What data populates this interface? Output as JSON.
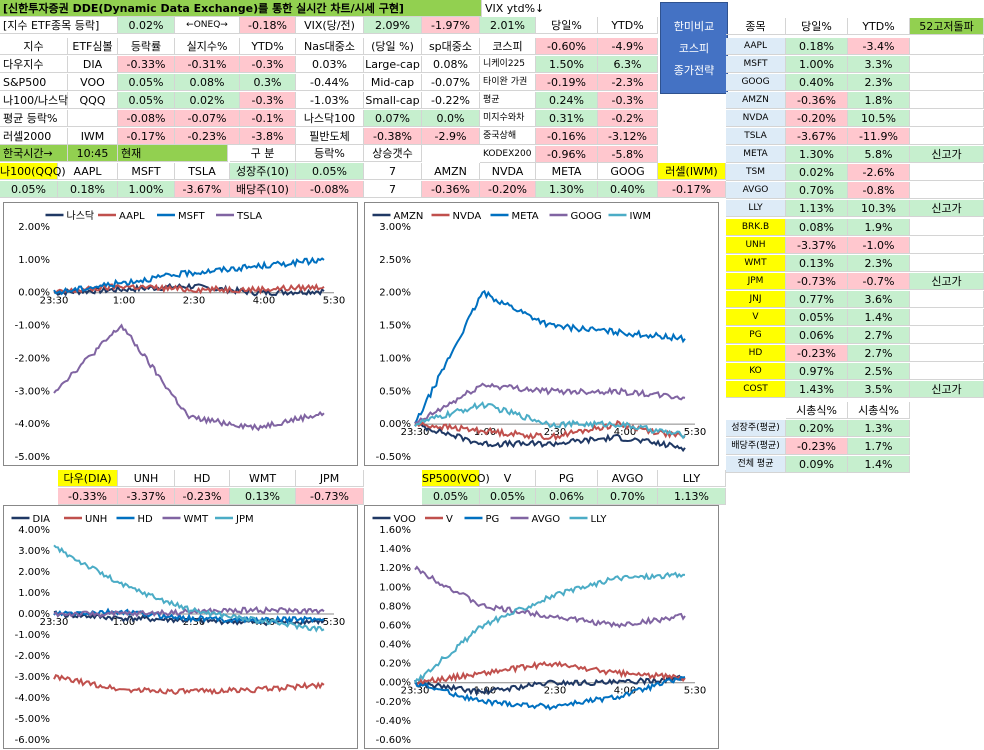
{
  "title": "[신한투자증권 DDE(Dynamic Data Exchange)를 통한 실시간 차트/시세 구현]",
  "vix_label": "VIX ytd%↓",
  "top_row": {
    "c1": "[지수 ETF종목 등락]",
    "c2": "0.02%",
    "c3": "←ONEQ→",
    "c4": "-0.18%",
    "c5": "VIX(당/전)",
    "c6": "2.09%",
    "c7": "-1.97%",
    "c8": "2.01%",
    "c9": "당일%",
    "c10": "YTD%"
  },
  "button": {
    "line1": "한미비교",
    "line2": "코스피",
    "line3": "종가전략"
  },
  "index_table": {
    "headers": [
      "지수",
      "ETF심볼",
      "등락률",
      "실지수%",
      "YTD%"
    ],
    "rows": [
      [
        "다우지수",
        "DIA",
        "-0.33%",
        "-0.31%",
        "-0.3%"
      ],
      [
        "S&P500",
        "VOO",
        "0.05%",
        "0.08%",
        "0.3%"
      ],
      [
        "나100/나스닥",
        "QQQ",
        "0.05%",
        "0.02%",
        "-0.3%"
      ],
      [
        "평균 등락%",
        "",
        "-0.08%",
        "-0.07%",
        "-0.1%"
      ],
      [
        "러셀2000",
        "IWM",
        "-0.17%",
        "-0.23%",
        "-3.8%"
      ]
    ]
  },
  "size_table": {
    "headers": [
      "Nas대중소",
      "(당일 %)",
      "sp대중소"
    ],
    "rows": [
      [
        "0.03%",
        "Large-cap",
        "0.08%"
      ],
      [
        "-0.44%",
        "Mid-cap",
        "-0.07%"
      ],
      [
        "-1.03%",
        "Small-cap",
        "-0.22%"
      ]
    ],
    "nas100_label": "나스닥100",
    "nas100_val1": "0.07%",
    "nas100_val2": "0.0%",
    "semi_label": "필반도체",
    "semi_val1": "-0.38%",
    "semi_val2": "-2.9%"
  },
  "asia_table": {
    "headers": [
      "코스피",
      "-0.60%",
      "-4.9%"
    ],
    "rows": [
      [
        "니케이225",
        "1.50%",
        "6.3%"
      ],
      [
        "타이완 가권",
        "-0.19%",
        "-2.3%"
      ],
      [
        "평균",
        "0.24%",
        "-0.3%"
      ],
      [
        "미지수와차",
        "0.31%",
        "-0.2%"
      ],
      [
        "중국상해",
        "-0.16%",
        "-3.12%"
      ],
      [
        "KODEX200",
        "-0.96%",
        "-5.8%"
      ]
    ]
  },
  "time_row": {
    "label": "한국시간→",
    "time": "10:45",
    "now": "현재"
  },
  "growth_table": {
    "headers": [
      "구  분",
      "등락%",
      "상승갯수"
    ],
    "rows": [
      [
        "성장주(10)",
        "0.05%",
        "7"
      ],
      [
        "배당주(10)",
        "-0.08%",
        "7"
      ]
    ]
  },
  "quote_row1": {
    "names": [
      "나100(QQQ)",
      "AAPL",
      "MSFT",
      "TSLA"
    ],
    "vals": [
      "0.05%",
      "0.18%",
      "1.00%",
      "-3.67%"
    ]
  },
  "quote_row2": {
    "names": [
      "AMZN",
      "NVDA",
      "META",
      "GOOG",
      "러셀(IWM)"
    ],
    "vals": [
      "-0.36%",
      "-0.20%",
      "1.30%",
      "0.40%",
      "-0.17%"
    ]
  },
  "stock_table": {
    "headers": [
      "종목",
      "당일%",
      "YTD%",
      "52고저돌파"
    ],
    "rows": [
      [
        "AAPL",
        "0.18%",
        "-3.4%",
        ""
      ],
      [
        "MSFT",
        "1.00%",
        "3.3%",
        ""
      ],
      [
        "GOOG",
        "0.40%",
        "2.3%",
        ""
      ],
      [
        "AMZN",
        "-0.36%",
        "1.8%",
        ""
      ],
      [
        "NVDA",
        "-0.20%",
        "10.5%",
        ""
      ],
      [
        "TSLA",
        "-3.67%",
        "-11.9%",
        ""
      ],
      [
        "META",
        "1.30%",
        "5.8%",
        "신고가"
      ],
      [
        "TSM",
        "0.02%",
        "-2.6%",
        ""
      ],
      [
        "AVGO",
        "0.70%",
        "-0.8%",
        ""
      ],
      [
        "LLY",
        "1.13%",
        "10.3%",
        "신고가"
      ],
      [
        "BRK.B",
        "0.08%",
        "1.9%",
        ""
      ],
      [
        "UNH",
        "-3.37%",
        "-1.0%",
        ""
      ],
      [
        "WMT",
        "0.13%",
        "2.3%",
        ""
      ],
      [
        "JPM",
        "-0.73%",
        "-0.7%",
        "신고가"
      ],
      [
        "JNJ",
        "0.77%",
        "3.6%",
        ""
      ],
      [
        "V",
        "0.05%",
        "1.4%",
        ""
      ],
      [
        "PG",
        "0.06%",
        "2.7%",
        ""
      ],
      [
        "HD",
        "-0.23%",
        "2.7%",
        ""
      ],
      [
        "KO",
        "0.97%",
        "2.5%",
        ""
      ],
      [
        "COST",
        "1.43%",
        "3.5%",
        "신고가"
      ]
    ]
  },
  "mcap_table": {
    "headers": [
      "시총식%",
      "시총식%"
    ],
    "rows": [
      [
        "성장주(평균)",
        "0.20%",
        "1.3%"
      ],
      [
        "배당주(평균)",
        "-0.23%",
        "1.7%"
      ],
      [
        "전체 평균",
        "0.09%",
        "1.4%"
      ]
    ]
  },
  "quote_row3": {
    "names": [
      "다우(DIA)",
      "UNH",
      "HD",
      "WMT",
      "JPM"
    ],
    "vals": [
      "-0.33%",
      "-3.37%",
      "-0.23%",
      "0.13%",
      "-0.73%"
    ]
  },
  "quote_row4": {
    "names": [
      "SP500(VOO)",
      "V",
      "PG",
      "AVGO",
      "LLY"
    ],
    "vals": [
      "0.05%",
      "0.05%",
      "0.06%",
      "0.70%",
      "1.13%"
    ]
  },
  "colors": {
    "dark": "#1f3864",
    "red": "#c0504d",
    "blue": "#0070c0",
    "purple": "#8064a2",
    "teal": "#4bacc6"
  },
  "chart_data": [
    {
      "type": "line",
      "x": [
        "23:30",
        "1:00",
        "2:30",
        "4:00",
        "5:30"
      ],
      "ylim": [
        -5,
        2
      ],
      "yticks": [
        "2.00%",
        "1.00%",
        "0.00%",
        "-1.00%",
        "-2.00%",
        "-3.00%",
        "-4.00%",
        "-5.00%"
      ],
      "series": [
        {
          "name": "나스닥",
          "final": 0.05
        },
        {
          "name": "AAPL",
          "final": 0.18
        },
        {
          "name": "MSFT",
          "final": 1.0
        },
        {
          "name": "TSLA",
          "final": -3.67
        }
      ]
    },
    {
      "type": "line",
      "x": [
        "23:30",
        "1:00",
        "2:30",
        "4:00",
        "5:30"
      ],
      "ylim": [
        -0.5,
        3
      ],
      "yticks": [
        "3.00%",
        "2.50%",
        "2.00%",
        "1.50%",
        "1.00%",
        "0.50%",
        "0.00%",
        "-0.50%"
      ],
      "series": [
        {
          "name": "AMZN",
          "final": -0.36
        },
        {
          "name": "NVDA",
          "final": -0.2
        },
        {
          "name": "META",
          "final": 1.3
        },
        {
          "name": "GOOG",
          "final": 0.4
        },
        {
          "name": "IWM",
          "final": -0.17
        }
      ]
    },
    {
      "type": "line",
      "x": [
        "23:30",
        "1:00",
        "2:30",
        "4:00",
        "5:30"
      ],
      "ylim": [
        -6,
        4
      ],
      "yticks": [
        "4.00%",
        "3.00%",
        "2.00%",
        "1.00%",
        "0.00%",
        "-1.00%",
        "-2.00%",
        "-3.00%",
        "-4.00%",
        "-5.00%",
        "-6.00%"
      ],
      "series": [
        {
          "name": "DIA",
          "final": -0.33
        },
        {
          "name": "UNH",
          "final": -3.37
        },
        {
          "name": "HD",
          "final": -0.23
        },
        {
          "name": "WMT",
          "final": 0.13
        },
        {
          "name": "JPM",
          "final": -0.73
        }
      ]
    },
    {
      "type": "line",
      "x": [
        "23:30",
        "1:00",
        "2:30",
        "4:00",
        "5:30"
      ],
      "ylim": [
        -0.6,
        1.6
      ],
      "yticks": [
        "1.60%",
        "1.40%",
        "1.20%",
        "1.00%",
        "0.80%",
        "0.60%",
        "0.40%",
        "0.20%",
        "0.00%",
        "-0.20%",
        "-0.40%",
        "-0.60%"
      ],
      "series": [
        {
          "name": "VOO",
          "final": 0.05
        },
        {
          "name": "V",
          "final": 0.05
        },
        {
          "name": "PG",
          "final": 0.06
        },
        {
          "name": "AVGO",
          "final": 0.7
        },
        {
          "name": "LLY",
          "final": 1.13
        }
      ]
    }
  ]
}
